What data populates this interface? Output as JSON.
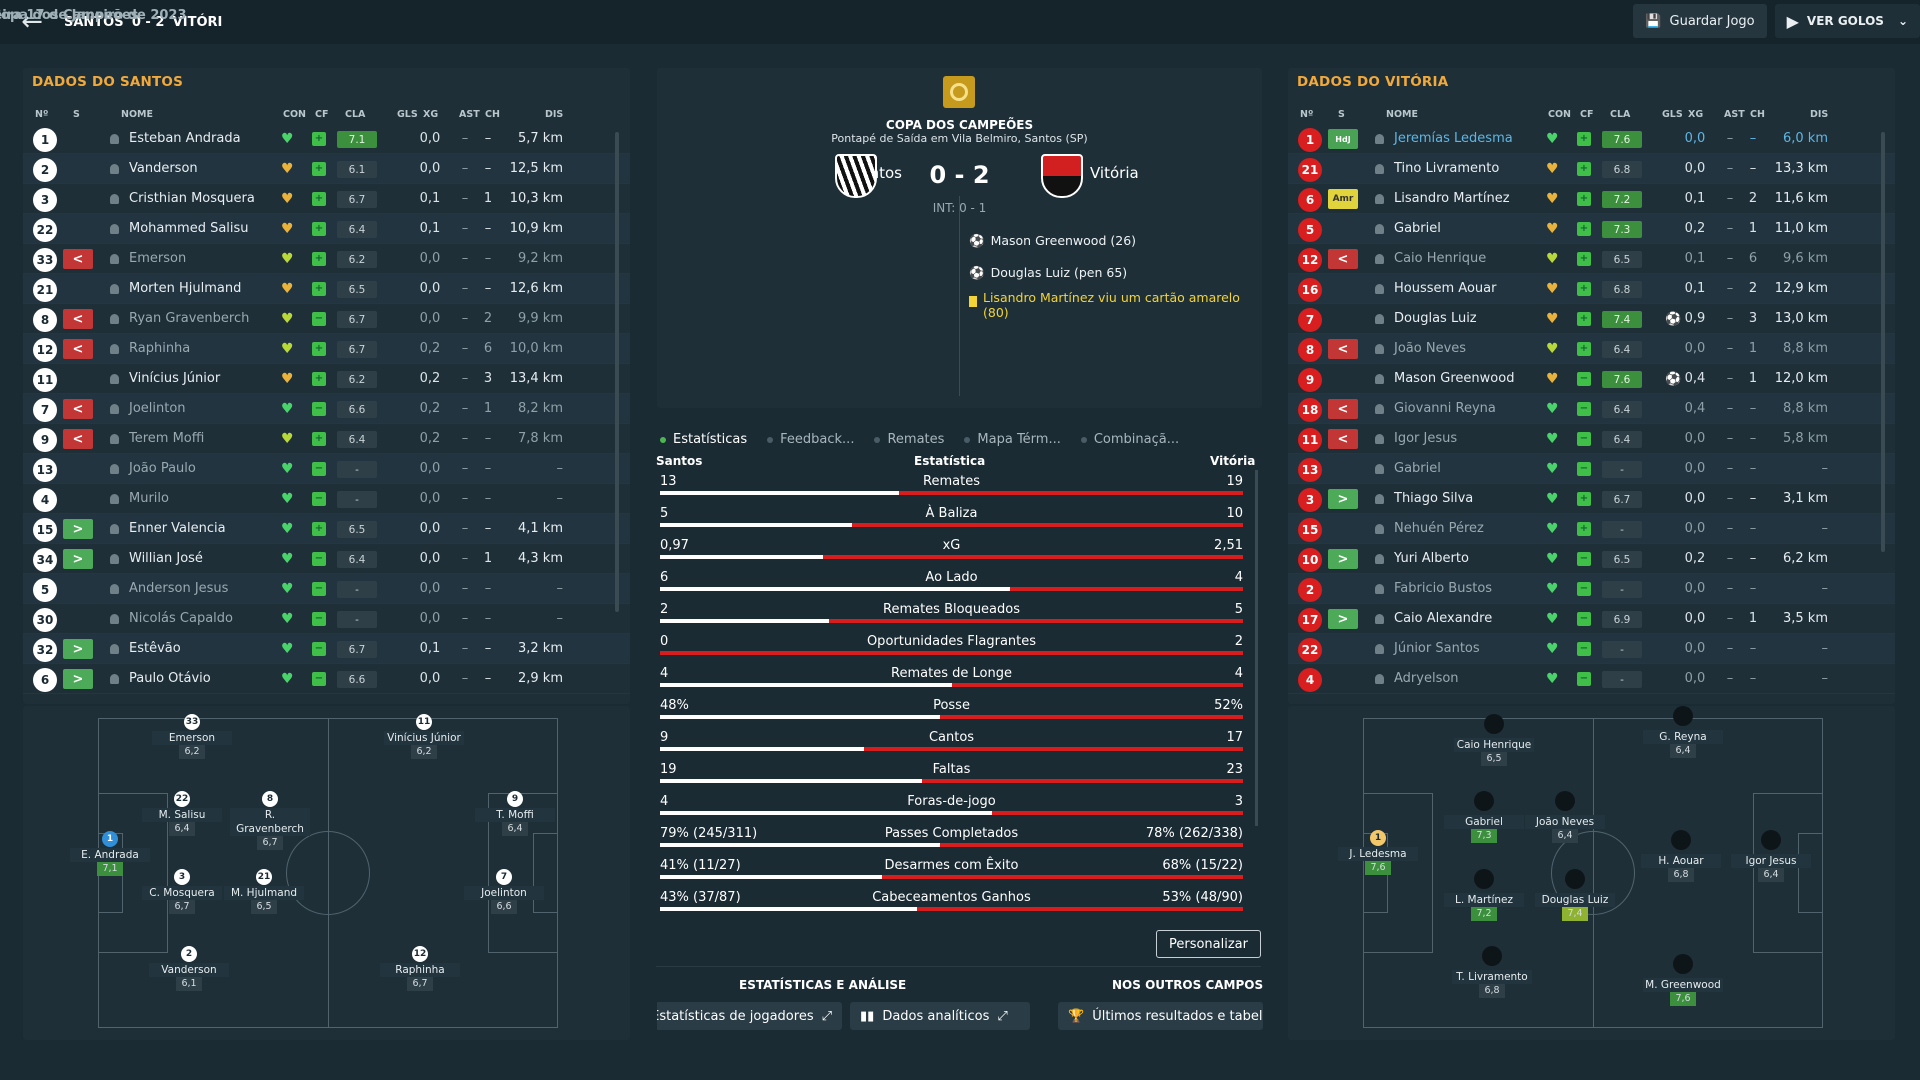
{
  "header": {
    "home": "SANTOS",
    "score": "0 - 2",
    "away": "VITÓRI",
    "competition": "Copa dos Campeões",
    "sep": "–",
    "date": "Terça-feira 17 de Janeiro de 2023",
    "save_label": "Guardar Jogo",
    "goals_label": "VER GOLOS"
  },
  "cols": {
    "num": "Nº",
    "s": "S",
    "name": "NOME",
    "con": "CON",
    "cf": "CF",
    "cla": "CLA",
    "gls": "GLS",
    "xg": "XG",
    "ast": "AST",
    "ch": "CH",
    "dis": "DIS"
  },
  "home_panel": {
    "title": "DADOS DO SANTOS",
    "players": [
      {
        "n": "1",
        "sub": "",
        "name": "Esteban Andrada",
        "heart": "g",
        "cf": "g",
        "cla": "7.1",
        "g": true,
        "xg": "0,0",
        "ast": "–",
        "ch": "–",
        "dis": "5,7 km",
        "dim": false
      },
      {
        "n": "2",
        "sub": "",
        "name": "Vanderson",
        "heart": "o",
        "cf": "g",
        "cla": "6.1",
        "g": false,
        "xg": "0,0",
        "ast": "–",
        "ch": "–",
        "dis": "12,5 km",
        "dim": false
      },
      {
        "n": "3",
        "sub": "",
        "name": "Cristhian Mosquera",
        "heart": "o",
        "cf": "g",
        "cla": "6.7",
        "g": false,
        "xg": "0,1",
        "ast": "–",
        "ch": "1",
        "dis": "10,3 km",
        "dim": false
      },
      {
        "n": "22",
        "sub": "",
        "name": "Mohammed Salisu",
        "heart": "o",
        "cf": "g",
        "cla": "6.4",
        "g": false,
        "xg": "0,1",
        "ast": "–",
        "ch": "–",
        "dis": "10,9 km",
        "dim": false
      },
      {
        "n": "33",
        "sub": "out",
        "name": "Emerson",
        "heart": "y",
        "cf": "g",
        "cla": "6.2",
        "g": false,
        "xg": "0,0",
        "ast": "–",
        "ch": "–",
        "dis": "9,2 km",
        "dim": true
      },
      {
        "n": "21",
        "sub": "",
        "name": "Morten Hjulmand",
        "heart": "o",
        "cf": "g",
        "cla": "6.5",
        "g": false,
        "xg": "0,0",
        "ast": "–",
        "ch": "–",
        "dis": "12,6 km",
        "dim": false
      },
      {
        "n": "8",
        "sub": "out",
        "name": "Ryan Gravenberch",
        "heart": "y",
        "cf": "m",
        "cla": "6.7",
        "g": false,
        "xg": "0,0",
        "ast": "–",
        "ch": "2",
        "dis": "9,9 km",
        "dim": true
      },
      {
        "n": "12",
        "sub": "out",
        "name": "Raphinha",
        "heart": "y",
        "cf": "g",
        "cla": "6.7",
        "g": false,
        "xg": "0,2",
        "ast": "–",
        "ch": "6",
        "dis": "10,0 km",
        "dim": true
      },
      {
        "n": "11",
        "sub": "",
        "name": "Vinícius Júnior",
        "heart": "o",
        "cf": "g",
        "cla": "6.2",
        "g": false,
        "xg": "0,2",
        "ast": "–",
        "ch": "3",
        "dis": "13,4 km",
        "dim": false
      },
      {
        "n": "7",
        "sub": "out",
        "name": "Joelinton",
        "heart": "g",
        "cf": "m",
        "cla": "6.6",
        "g": false,
        "xg": "0,2",
        "ast": "–",
        "ch": "1",
        "dis": "8,2 km",
        "dim": true
      },
      {
        "n": "9",
        "sub": "out",
        "name": "Terem Moffi",
        "heart": "y",
        "cf": "g",
        "cla": "6.4",
        "g": false,
        "xg": "0,2",
        "ast": "–",
        "ch": "–",
        "dis": "7,8 km",
        "dim": true
      },
      {
        "n": "13",
        "sub": "",
        "name": "João Paulo",
        "heart": "g",
        "cf": "m",
        "cla": "-",
        "g": false,
        "xg": "0,0",
        "ast": "–",
        "ch": "–",
        "dis": "–",
        "dim": true
      },
      {
        "n": "4",
        "sub": "",
        "name": "Murilo",
        "heart": "g",
        "cf": "m",
        "cla": "-",
        "g": false,
        "xg": "0,0",
        "ast": "–",
        "ch": "–",
        "dis": "–",
        "dim": true
      },
      {
        "n": "15",
        "sub": "in",
        "name": "Enner Valencia",
        "heart": "g",
        "cf": "g",
        "cla": "6.5",
        "g": false,
        "xg": "0,0",
        "ast": "–",
        "ch": "–",
        "dis": "4,1 km",
        "dim": false
      },
      {
        "n": "34",
        "sub": "in",
        "name": "Willian José",
        "heart": "g",
        "cf": "m",
        "cla": "6.4",
        "g": false,
        "xg": "0,0",
        "ast": "–",
        "ch": "1",
        "dis": "4,3 km",
        "dim": false
      },
      {
        "n": "5",
        "sub": "",
        "name": "Anderson Jesus",
        "heart": "g",
        "cf": "m",
        "cla": "-",
        "g": false,
        "xg": "0,0",
        "ast": "–",
        "ch": "–",
        "dis": "–",
        "dim": true
      },
      {
        "n": "30",
        "sub": "",
        "name": "Nicolás Capaldo",
        "heart": "g",
        "cf": "m",
        "cla": "-",
        "g": false,
        "xg": "0,0",
        "ast": "–",
        "ch": "–",
        "dis": "–",
        "dim": true
      },
      {
        "n": "32",
        "sub": "in",
        "name": "Estêvão",
        "heart": "g",
        "cf": "m",
        "cla": "6.7",
        "g": false,
        "xg": "0,1",
        "ast": "–",
        "ch": "–",
        "dis": "3,2 km",
        "dim": false
      },
      {
        "n": "6",
        "sub": "in",
        "name": "Paulo Otávio",
        "heart": "g",
        "cf": "m",
        "cla": "6.6",
        "g": false,
        "xg": "0,0",
        "ast": "–",
        "ch": "–",
        "dis": "2,9 km",
        "dim": false
      }
    ]
  },
  "away_panel": {
    "title": "DADOS DO VITÓRIA",
    "players": [
      {
        "n": "1",
        "sub": "hdj",
        "subt": "HdJ",
        "name": "Jeremías Ledesma",
        "heart": "g",
        "cf": "g",
        "cla": "7.6",
        "g": true,
        "xg": "0,0",
        "ast": "–",
        "ch": "–",
        "dis": "6,0 km",
        "dim": false,
        "link": true,
        "ev": ""
      },
      {
        "n": "21",
        "sub": "",
        "subt": "",
        "name": "Tino Livramento",
        "heart": "o",
        "cf": "g",
        "cla": "6.8",
        "g": false,
        "xg": "0,0",
        "ast": "–",
        "ch": "–",
        "dis": "13,3 km",
        "dim": false,
        "ev": ""
      },
      {
        "n": "6",
        "sub": "amr",
        "subt": "Amr",
        "name": "Lisandro Martínez",
        "heart": "o",
        "cf": "g",
        "cla": "7.2",
        "g": true,
        "xg": "0,1",
        "ast": "–",
        "ch": "2",
        "dis": "11,6 km",
        "dim": false,
        "ev": ""
      },
      {
        "n": "5",
        "sub": "",
        "subt": "",
        "name": "Gabriel",
        "heart": "o",
        "cf": "g",
        "cla": "7.3",
        "g": true,
        "xg": "0,2",
        "ast": "–",
        "ch": "1",
        "dis": "11,0 km",
        "dim": false,
        "ev": ""
      },
      {
        "n": "12",
        "sub": "out",
        "subt": "",
        "name": "Caio Henrique",
        "heart": "y",
        "cf": "g",
        "cla": "6.5",
        "g": false,
        "xg": "0,1",
        "ast": "–",
        "ch": "6",
        "dis": "9,6 km",
        "dim": true,
        "ev": ""
      },
      {
        "n": "16",
        "sub": "",
        "subt": "",
        "name": "Houssem Aouar",
        "heart": "o",
        "cf": "g",
        "cla": "6.8",
        "g": false,
        "xg": "0,1",
        "ast": "–",
        "ch": "2",
        "dis": "12,9 km",
        "dim": false,
        "ev": ""
      },
      {
        "n": "7",
        "sub": "",
        "subt": "",
        "name": "Douglas Luiz",
        "heart": "o",
        "cf": "g",
        "cla": "7.4",
        "g": true,
        "xg": "0,9",
        "ast": "–",
        "ch": "3",
        "dis": "13,0 km",
        "dim": false,
        "ev": "⚽"
      },
      {
        "n": "8",
        "sub": "out",
        "subt": "",
        "name": "João Neves",
        "heart": "y",
        "cf": "g",
        "cla": "6.4",
        "g": false,
        "xg": "0,0",
        "ast": "–",
        "ch": "1",
        "dis": "8,8 km",
        "dim": true,
        "ev": ""
      },
      {
        "n": "9",
        "sub": "",
        "subt": "",
        "name": "Mason Greenwood",
        "heart": "o",
        "cf": "m",
        "cla": "7.6",
        "g": true,
        "xg": "0,4",
        "ast": "–",
        "ch": "1",
        "dis": "12,0 km",
        "dim": false,
        "ev": "⚽"
      },
      {
        "n": "18",
        "sub": "out",
        "subt": "",
        "name": "Giovanni Reyna",
        "heart": "g",
        "cf": "m",
        "cla": "6.4",
        "g": false,
        "xg": "0,4",
        "ast": "–",
        "ch": "–",
        "dis": "8,8 km",
        "dim": true,
        "ev": ""
      },
      {
        "n": "11",
        "sub": "out",
        "subt": "",
        "name": "Igor Jesus",
        "heart": "g",
        "cf": "m",
        "cla": "6.4",
        "g": false,
        "xg": "0,0",
        "ast": "–",
        "ch": "–",
        "dis": "5,8 km",
        "dim": true,
        "ev": ""
      },
      {
        "n": "13",
        "sub": "",
        "subt": "",
        "name": "Gabriel",
        "heart": "g",
        "cf": "m",
        "cla": "-",
        "g": false,
        "xg": "0,0",
        "ast": "–",
        "ch": "–",
        "dis": "–",
        "dim": true,
        "ev": ""
      },
      {
        "n": "3",
        "sub": "in",
        "subt": "",
        "name": "Thiago Silva",
        "heart": "g",
        "cf": "g",
        "cla": "6.7",
        "g": false,
        "xg": "0,0",
        "ast": "–",
        "ch": "–",
        "dis": "3,1 km",
        "dim": false,
        "ev": ""
      },
      {
        "n": "15",
        "sub": "",
        "subt": "",
        "name": "Nehuén Pérez",
        "heart": "g",
        "cf": "g",
        "cla": "-",
        "g": false,
        "xg": "0,0",
        "ast": "–",
        "ch": "–",
        "dis": "–",
        "dim": true,
        "ev": ""
      },
      {
        "n": "10",
        "sub": "in",
        "subt": "",
        "name": "Yuri Alberto",
        "heart": "g",
        "cf": "m",
        "cla": "6.5",
        "g": false,
        "xg": "0,2",
        "ast": "–",
        "ch": "–",
        "dis": "6,2 km",
        "dim": false,
        "ev": ""
      },
      {
        "n": "2",
        "sub": "",
        "subt": "",
        "name": "Fabricio Bustos",
        "heart": "g",
        "cf": "m",
        "cla": "-",
        "g": false,
        "xg": "0,0",
        "ast": "–",
        "ch": "–",
        "dis": "–",
        "dim": true,
        "ev": ""
      },
      {
        "n": "17",
        "sub": "in",
        "subt": "",
        "name": "Caio Alexandre",
        "heart": "g",
        "cf": "m",
        "cla": "6.9",
        "g": false,
        "xg": "0,0",
        "ast": "–",
        "ch": "1",
        "dis": "3,5 km",
        "dim": false,
        "ev": ""
      },
      {
        "n": "22",
        "sub": "",
        "subt": "",
        "name": "Júnior Santos",
        "heart": "g",
        "cf": "m",
        "cla": "-",
        "g": false,
        "xg": "0,0",
        "ast": "–",
        "ch": "–",
        "dis": "–",
        "dim": true,
        "ev": ""
      },
      {
        "n": "4",
        "sub": "",
        "subt": "",
        "name": "Adryelson",
        "heart": "g",
        "cf": "m",
        "cla": "-",
        "g": false,
        "xg": "0,0",
        "ast": "–",
        "ch": "–",
        "dis": "–",
        "dim": true,
        "ev": ""
      }
    ]
  },
  "match": {
    "competition": "COPA DOS CAMPEÕES",
    "venue": "Pontapé de Saída em Vila Belmiro, Santos (SP)",
    "home": "Santos",
    "away": "Vitória",
    "score": "0 - 2",
    "ht": "INT: 0 - 1",
    "events": [
      {
        "type": "goal",
        "text": "Mason Greenwood (26)"
      },
      {
        "type": "goal",
        "text": "Douglas Luiz (pen 65)"
      },
      {
        "type": "yellow",
        "text": "Lisandro Martínez viu um cartão amarelo (80)"
      }
    ]
  },
  "tabs": [
    "Estatísticas",
    "Feedback...",
    "Remates",
    "Mapa Térm...",
    "Combinaçã..."
  ],
  "stats_header": {
    "home": "Santos",
    "mid": "Estatística",
    "away": "Vitória"
  },
  "stats": [
    {
      "label": "Remates",
      "home": "13",
      "away": "19",
      "share": 0.41
    },
    {
      "label": "À Baliza",
      "home": "5",
      "away": "10",
      "share": 0.33
    },
    {
      "label": "xG",
      "home": "0,97",
      "away": "2,51",
      "share": 0.28
    },
    {
      "label": "Ao Lado",
      "home": "6",
      "away": "4",
      "share": 0.6
    },
    {
      "label": "Remates Bloqueados",
      "home": "2",
      "away": "5",
      "share": 0.29
    },
    {
      "label": "Oportunidades Flagrantes",
      "home": "0",
      "away": "2",
      "share": 0.0
    },
    {
      "label": "Remates de Longe",
      "home": "4",
      "away": "4",
      "share": 0.5
    },
    {
      "label": "Posse",
      "home": "48%",
      "away": "52%",
      "share": 0.48
    },
    {
      "label": "Cantos",
      "home": "9",
      "away": "17",
      "share": 0.35
    },
    {
      "label": "Faltas",
      "home": "19",
      "away": "23",
      "share": 0.45
    },
    {
      "label": "Foras-de-jogo",
      "home": "4",
      "away": "3",
      "share": 0.57
    },
    {
      "label": "Passes Completados",
      "home": "79% (245/311)",
      "away": "78% (262/338)",
      "share": 0.48
    },
    {
      "label": "Desarmes com Êxito",
      "home": "41% (11/27)",
      "away": "68% (15/22)",
      "share": 0.38
    },
    {
      "label": "Cabeceamentos Ganhos",
      "home": "43% (37/87)",
      "away": "53% (48/90)",
      "share": 0.44
    }
  ],
  "customize_label": "Personalizar",
  "bottom": {
    "stats_title": "ESTATÍSTICAS E ANÁLISE",
    "others_title": "NOS OUTROS CAMPOS",
    "player_stats_btn": "Estatísticas de jogadores",
    "analytics_btn": "Dados analíticos",
    "results_btn": "Últimos resultados e tabelas"
  },
  "home_formation": [
    {
      "n": "33",
      "name": "Emerson",
      "rt": "6,2",
      "c": "n"
    },
    {
      "n": "11",
      "name": "Vinícius Júnior",
      "rt": "6,2",
      "c": "n"
    },
    {
      "n": "22",
      "name": "M. Salisu",
      "rt": "6,4",
      "c": "n"
    },
    {
      "n": "8",
      "name": "R. Gravenberch",
      "rt": "6,7",
      "c": "n"
    },
    {
      "n": "9",
      "name": "T. Moffi",
      "rt": "6,4",
      "c": "n"
    },
    {
      "n": "1",
      "name": "E. Andrada",
      "rt": "7,1",
      "c": "g"
    },
    {
      "n": "3",
      "name": "C. Mosquera",
      "rt": "6,7",
      "c": "n"
    },
    {
      "n": "21",
      "name": "M. Hjulmand",
      "rt": "6,5",
      "c": "n"
    },
    {
      "n": "7",
      "name": "Joelinton",
      "rt": "6,6",
      "c": "n"
    },
    {
      "n": "2",
      "name": "Vanderson",
      "rt": "6,1",
      "c": "n"
    },
    {
      "n": "12",
      "name": "Raphinha",
      "rt": "6,7",
      "c": "n"
    }
  ],
  "away_formation": [
    {
      "n": "",
      "name": "Caio Henrique",
      "rt": "6,5",
      "c": "n"
    },
    {
      "n": "",
      "name": "G. Reyna",
      "rt": "6,4",
      "c": "n"
    },
    {
      "n": "",
      "name": "Gabriel",
      "rt": "7,3",
      "c": "g"
    },
    {
      "n": "",
      "name": "João Neves",
      "rt": "6,4",
      "c": "n"
    },
    {
      "n": "1",
      "name": "J. Ledesma",
      "rt": "7,6",
      "c": "g"
    },
    {
      "n": "",
      "name": "H. Aouar",
      "rt": "6,8",
      "c": "n"
    },
    {
      "n": "",
      "name": "Igor Jesus",
      "rt": "6,4",
      "c": "n"
    },
    {
      "n": "",
      "name": "L. Martínez",
      "rt": "7,2",
      "c": "g"
    },
    {
      "n": "",
      "name": "Douglas Luiz",
      "rt": "7,4",
      "c": "y"
    },
    {
      "n": "",
      "name": "T. Livramento",
      "rt": "6,8",
      "c": "n"
    },
    {
      "n": "",
      "name": "M. Greenwood",
      "rt": "7,6",
      "c": "g"
    }
  ]
}
